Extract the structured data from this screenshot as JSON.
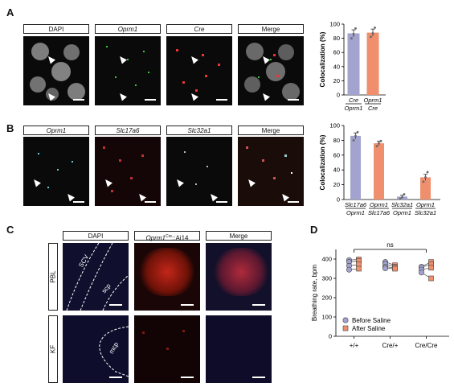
{
  "panels": {
    "A": {
      "label": "A",
      "headers": [
        "DAPI",
        "Oprm1",
        "Cre",
        "Merge"
      ],
      "header_italic": [
        false,
        true,
        true,
        false
      ]
    },
    "B": {
      "label": "B",
      "headers": [
        "Oprm1",
        "Slc17a6",
        "Slc32a1",
        "Merge"
      ],
      "header_italic": [
        true,
        true,
        true,
        false
      ]
    },
    "C": {
      "label": "C",
      "headers": [
        "DAPI",
        "Oprm1",
        "Cre",
        "::Ai14",
        "Merge"
      ],
      "rows": [
        "PBL",
        "KF"
      ],
      "annotations": [
        "SCV",
        "scp",
        "mcp"
      ]
    },
    "D": {
      "label": "D"
    }
  },
  "colors": {
    "purple": "#a3a3cf",
    "orange": "#ef8f6d",
    "dapi": "#2a2aa8",
    "tdtomato": "#c4261a"
  },
  "chart_data": [
    {
      "type": "bar",
      "panel": "A",
      "ylabel": "Colocalization (%)",
      "ylim": [
        0,
        100
      ],
      "yticks": [
        0,
        20,
        40,
        60,
        80,
        100
      ],
      "categories": [
        {
          "top": "Cre",
          "bottom": "Oprm1"
        },
        {
          "top": "Oprm1",
          "bottom": "Cre"
        }
      ],
      "values": [
        87,
        88
      ],
      "errors": [
        5,
        5
      ],
      "points": [
        [
          80,
          86,
          94
        ],
        [
          82,
          87,
          95
        ]
      ],
      "bar_colors": [
        "#a3a3cf",
        "#ef8f6d"
      ]
    },
    {
      "type": "bar",
      "panel": "B",
      "ylabel": "Colocalization (%)",
      "ylim": [
        0,
        100
      ],
      "yticks": [
        0,
        20,
        40,
        60,
        80,
        100
      ],
      "categories": [
        {
          "top": "Slc17a6",
          "bottom": "Oprm1"
        },
        {
          "top": "Oprm1",
          "bottom": "Slc17a6"
        },
        {
          "top": "Slc32a1",
          "bottom": "Oprm1"
        },
        {
          "top": "Oprm1",
          "bottom": "Slc32a1"
        }
      ],
      "values": [
        86,
        76,
        4,
        30
      ],
      "errors": [
        4,
        3,
        2,
        4
      ],
      "points": [
        [
          80,
          86,
          91
        ],
        [
          72,
          76,
          79
        ],
        [
          1,
          3,
          7
        ],
        [
          24,
          30,
          37
        ]
      ],
      "bar_colors": [
        "#a3a3cf",
        "#ef8f6d",
        "#a3a3cf",
        "#ef8f6d"
      ]
    },
    {
      "type": "scatter",
      "panel": "D",
      "ylabel": "Breathing rate, bpm",
      "ylim": [
        0,
        450
      ],
      "yticks": [
        0,
        100,
        200,
        300,
        400
      ],
      "categories": [
        "+/+",
        "Cre/+",
        "Cre/Cre"
      ],
      "significance": "ns",
      "series": [
        {
          "name": "Before Saline",
          "values": [
            [
              395,
              385,
              365,
              345
            ],
            [
              385,
              375,
              360,
              352
            ],
            [
              360,
              358,
              345,
              330
            ]
          ]
        },
        {
          "name": "After Saline",
          "values": [
            [
              398,
              390,
              372,
              350
            ],
            [
              368,
              360,
              355,
              350
            ],
            [
              385,
              372,
              355,
              300
            ]
          ]
        }
      ]
    }
  ]
}
